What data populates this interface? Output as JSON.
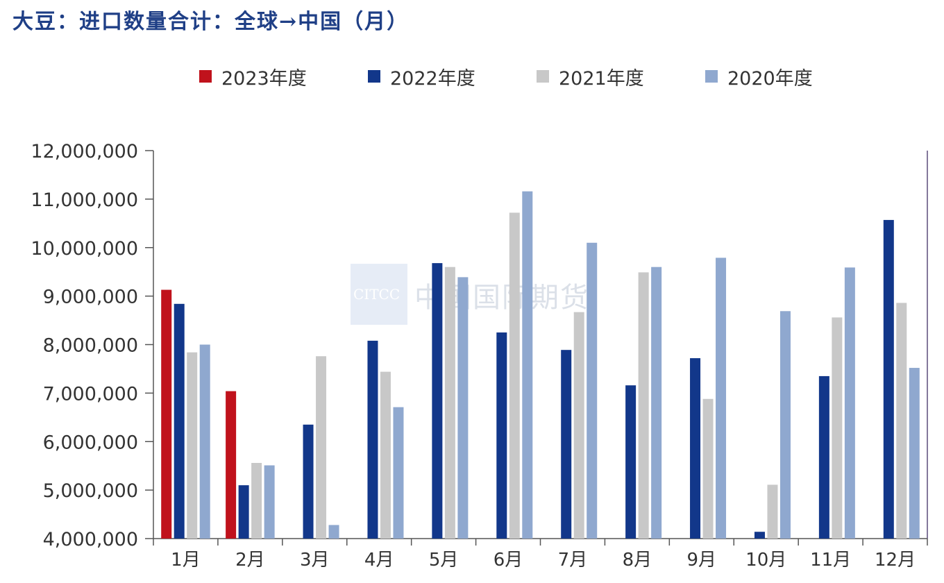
{
  "title": "大豆：进口数量合计：全球→中国（月）",
  "watermark": {
    "logo_text": "CITCC",
    "name": "中国国际期货"
  },
  "chart_data": {
    "type": "bar",
    "categories": [
      "1月",
      "2月",
      "3月",
      "4月",
      "5月",
      "6月",
      "7月",
      "8月",
      "9月",
      "10月",
      "11月",
      "12月"
    ],
    "ylim": [
      4000000,
      12000000
    ],
    "yticks": [
      4000000,
      5000000,
      6000000,
      7000000,
      8000000,
      9000000,
      10000000,
      11000000,
      12000000
    ],
    "ytick_labels": [
      "4,000,000",
      "5,000,000",
      "6,000,000",
      "7,000,000",
      "8,000,000",
      "9,000,000",
      "10,000,000",
      "11,000,000",
      "12,000,000"
    ],
    "legend_position": "top",
    "series": [
      {
        "name": "2023年度",
        "color": "#c0121c",
        "values": [
          9130000,
          7040000,
          null,
          null,
          null,
          null,
          null,
          null,
          null,
          null,
          null,
          null
        ]
      },
      {
        "name": "2022年度",
        "color": "#12378a",
        "values": [
          8840000,
          5100000,
          6350000,
          8080000,
          9680000,
          8250000,
          7890000,
          7160000,
          7720000,
          4140000,
          7350000,
          10570000
        ]
      },
      {
        "name": "2021年度",
        "color": "#c8c8c8",
        "values": [
          7840000,
          5560000,
          7760000,
          7440000,
          9600000,
          10720000,
          8670000,
          9490000,
          6880000,
          5110000,
          8560000,
          8860000
        ]
      },
      {
        "name": "2020年度",
        "color": "#8fa8cf",
        "values": [
          8000000,
          5510000,
          4280000,
          6710000,
          9390000,
          11160000,
          10100000,
          9600000,
          9790000,
          8690000,
          9590000,
          7520000
        ]
      }
    ]
  }
}
